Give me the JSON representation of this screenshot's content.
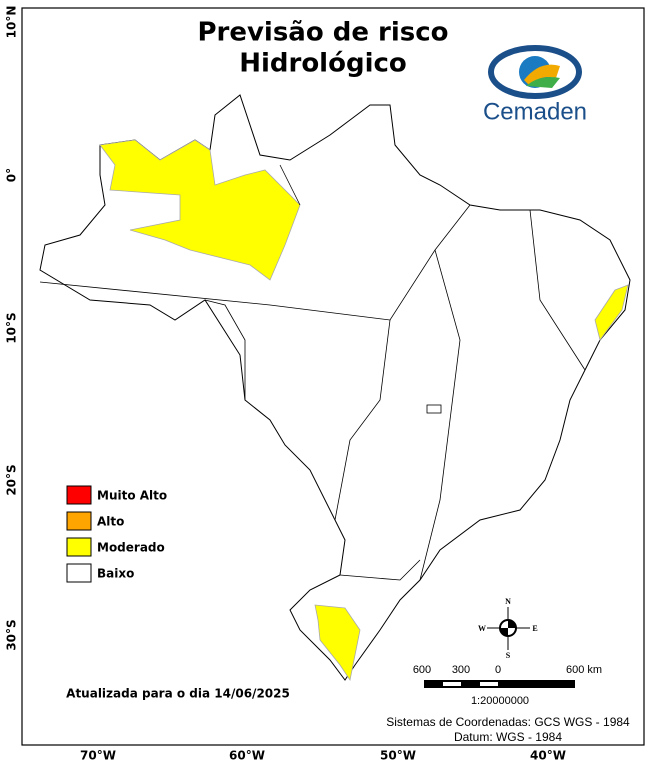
{
  "title": [
    "Previsão de risco",
    "Hidrológico"
  ],
  "logo": "Cemaden",
  "lat_labels": [
    "10°N",
    "0°",
    "10°S",
    "20°S",
    "30°S"
  ],
  "lon_labels": [
    "70°W",
    "60°W",
    "50°W",
    "40°W"
  ],
  "legend": [
    {
      "label": "Muito Alto",
      "color": "#ff0000"
    },
    {
      "label": "Alto",
      "color": "#ffa500"
    },
    {
      "label": "Moderado",
      "color": "#ffff00"
    },
    {
      "label": "Baixo",
      "color": "#ffffff"
    }
  ],
  "updated": "Atualizada para o dia 14/06/2025",
  "scale": {
    "labels": [
      "600",
      "300",
      "0",
      "600 km"
    ],
    "ratio": "1:20000000"
  },
  "compass": [
    "N",
    "E",
    "S",
    "W"
  ],
  "footer": [
    "Sistemas de Coordenadas: GCS WGS - 1984",
    "Datum: WGS - 1984"
  ]
}
